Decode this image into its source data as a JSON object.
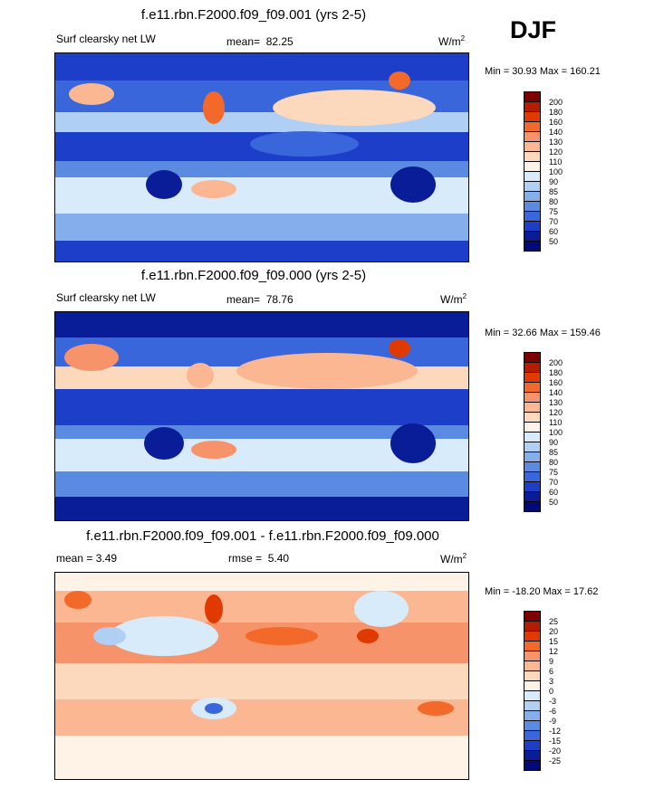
{
  "season": "DJF",
  "panels": [
    {
      "title": "f.e11.rbn.F2000.f09_f09.001 (yrs 2-5)",
      "left_label": "Surf clearsky net LW",
      "stat_label": "mean=",
      "stat_value": "82.25",
      "units_base": "W/m",
      "units_exp": "2",
      "minmax": "Min =  30.93 Max = 160.21",
      "levels": [
        "200",
        "180",
        "160",
        "140",
        "130",
        "120",
        "110",
        "100",
        "90",
        "85",
        "80",
        "75",
        "70",
        "60",
        "50"
      ],
      "colors": [
        "#7f0000",
        "#b81c00",
        "#e03a00",
        "#f2692a",
        "#f7936a",
        "#fab792",
        "#fcd9bd",
        "#fff2e6",
        "#d7ebfb",
        "#afcff4",
        "#84aeec",
        "#5b8ae3",
        "#3a66db",
        "#1d3ec9",
        "#0a1d99",
        "#000a78"
      ]
    },
    {
      "title": "f.e11.rbn.F2000.f09_f09.000 (yrs 2-5)",
      "left_label": "Surf clearsky net LW",
      "stat_label": "mean=",
      "stat_value": "78.76",
      "units_base": "W/m",
      "units_exp": "2",
      "minmax": "Min =  32.66 Max = 159.46",
      "levels": [
        "200",
        "180",
        "160",
        "140",
        "130",
        "120",
        "110",
        "100",
        "90",
        "85",
        "80",
        "75",
        "70",
        "60",
        "50"
      ],
      "colors": [
        "#7f0000",
        "#b81c00",
        "#e03a00",
        "#f2692a",
        "#f7936a",
        "#fab792",
        "#fcd9bd",
        "#fff2e6",
        "#d7ebfb",
        "#afcff4",
        "#84aeec",
        "#5b8ae3",
        "#3a66db",
        "#1d3ec9",
        "#0a1d99",
        "#000a78"
      ]
    },
    {
      "title": "f.e11.rbn.F2000.f09_f09.001 - f.e11.rbn.F2000.f09_f09.000",
      "left_label": "mean =   3.49",
      "stat_label": "rmse =",
      "stat_value": "5.40",
      "units_base": "W/m",
      "units_exp": "2",
      "minmax": "Min = -18.20 Max =  17.62",
      "levels": [
        "25",
        "20",
        "15",
        "12",
        "9",
        "6",
        "3",
        "0",
        "-3",
        "-6",
        "-9",
        "-12",
        "-15",
        "-20",
        "-25"
      ],
      "colors": [
        "#7f0000",
        "#b81c00",
        "#e03a00",
        "#f2692a",
        "#f7936a",
        "#fab792",
        "#fcd9bd",
        "#fff2e6",
        "#d7ebfb",
        "#afcff4",
        "#84aeec",
        "#5b8ae3",
        "#3a66db",
        "#1d3ec9",
        "#0a1d99",
        "#000a78"
      ]
    }
  ]
}
